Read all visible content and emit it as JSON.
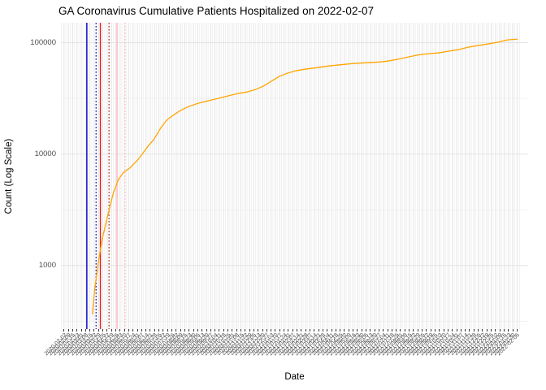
{
  "title": "GA Coronavirus Cumulative Patients Hospitalized on 2022-02-07",
  "axes": {
    "y_title": "Count (Log Scale)",
    "x_title": "Date",
    "y_tick_labels": [
      "100000",
      "10000",
      "1000"
    ]
  },
  "colors": {
    "series": "#FFA500",
    "grid_major": "#E4E4E4",
    "grid_minor": "#F1F1F1",
    "tick_mark": "#333333",
    "tick_text": "#4D4D4D",
    "background": "#FFFFFF"
  },
  "chart_data": {
    "type": "line",
    "title": "GA Coronavirus Cumulative Patients Hospitalized on 2022-02-07",
    "xlabel": "Date",
    "ylabel": "Count (Log Scale)",
    "y_scale": "log10",
    "ylim": [
      269,
      151000
    ],
    "x_range": [
      "2020-01-28",
      "2022-02-24"
    ],
    "y_major_ticks": [
      1000,
      10000,
      100000
    ],
    "y_minor_ticks": [
      316.23,
      3162.3,
      31623
    ],
    "grid": "major+minor",
    "legend": "none",
    "x_tick_labels": [
      "2020-02-02",
      "2020-02-09",
      "2020-02-16",
      "2020-02-23",
      "2020-03-01",
      "2020-03-08",
      "2020-03-15",
      "2020-03-22",
      "2020-03-29",
      "2020-04-05",
      "2020-04-12",
      "2020-04-19",
      "2020-04-26",
      "2020-05-03",
      "2020-05-10",
      "2020-05-17",
      "2020-05-24",
      "2020-05-31",
      "2020-06-07",
      "2020-06-14",
      "2020-06-21",
      "2020-06-28",
      "2020-07-05",
      "2020-07-12",
      "2020-07-19",
      "2020-07-26",
      "2020-08-02",
      "2020-08-09",
      "2020-08-16",
      "2020-08-23",
      "2020-08-30",
      "2020-09-06",
      "2020-09-13",
      "2020-09-20",
      "2020-09-27",
      "2020-10-04",
      "2020-10-11",
      "2020-10-18",
      "2020-10-25",
      "2020-11-01",
      "2020-11-08",
      "2020-11-15",
      "2020-11-22",
      "2020-11-29",
      "2020-12-06",
      "2020-12-13",
      "2020-12-20",
      "2020-12-27",
      "2021-01-03",
      "2021-01-10",
      "2021-01-17",
      "2021-01-24",
      "2021-01-31",
      "2021-02-07",
      "2021-02-14",
      "2021-02-21",
      "2021-02-28",
      "2021-03-07",
      "2021-03-14",
      "2021-03-21",
      "2021-03-28",
      "2021-04-04",
      "2021-04-11",
      "2021-04-18",
      "2021-04-25",
      "2021-05-02",
      "2021-05-09",
      "2021-05-16",
      "2021-05-23",
      "2021-05-30",
      "2021-06-06",
      "2021-06-13",
      "2021-06-20",
      "2021-06-27",
      "2021-07-04",
      "2021-07-11",
      "2021-07-18",
      "2021-07-25",
      "2021-08-01",
      "2021-08-08",
      "2021-08-15",
      "2021-08-22",
      "2021-08-29",
      "2021-09-05",
      "2021-09-12",
      "2021-09-19",
      "2021-09-26",
      "2021-10-03",
      "2021-10-10",
      "2021-10-17",
      "2021-10-24",
      "2021-10-31",
      "2021-11-07",
      "2021-11-14",
      "2021-11-21",
      "2021-11-28",
      "2021-12-05",
      "2021-12-12",
      "2021-12-19",
      "2021-12-26",
      "2022-01-02",
      "2022-01-09",
      "2022-01-16",
      "2022-01-23",
      "2022-01-30",
      "2022-02-06"
    ],
    "series": [
      {
        "name": "cumulative-patients-hospitalized",
        "color": "#FFA500",
        "x": [
          "2020-03-19",
          "2020-03-23",
          "2020-03-27",
          "2020-03-31",
          "2020-04-05",
          "2020-04-11",
          "2020-04-16",
          "2020-04-22",
          "2020-04-30",
          "2020-05-08",
          "2020-05-19",
          "2020-06-01",
          "2020-06-09",
          "2020-06-18",
          "2020-06-27",
          "2020-07-08",
          "2020-07-18",
          "2020-07-29",
          "2020-08-08",
          "2020-08-21",
          "2020-09-06",
          "2020-09-22",
          "2020-10-08",
          "2020-10-24",
          "2020-11-09",
          "2020-11-25",
          "2020-12-08",
          "2020-12-21",
          "2021-01-03",
          "2021-01-16",
          "2021-01-29",
          "2021-02-11",
          "2021-02-27",
          "2021-03-18",
          "2021-04-06",
          "2021-04-26",
          "2021-05-16",
          "2021-06-07",
          "2021-06-28",
          "2021-07-11",
          "2021-07-25",
          "2021-08-07",
          "2021-08-20",
          "2021-09-02",
          "2021-09-15",
          "2021-10-01",
          "2021-10-17",
          "2021-11-02",
          "2021-11-18",
          "2021-12-04",
          "2021-12-20",
          "2022-01-05",
          "2022-01-21",
          "2022-02-07"
        ],
        "y": [
          364,
          624,
          918,
          1290,
          1830,
          2520,
          3300,
          4480,
          5860,
          6810,
          7530,
          8910,
          10200,
          11900,
          13600,
          17200,
          20300,
          22500,
          24500,
          26600,
          28500,
          30000,
          31600,
          33200,
          34900,
          36100,
          37900,
          40600,
          44900,
          49700,
          53100,
          55900,
          57800,
          59700,
          61800,
          63400,
          65000,
          66100,
          67100,
          68400,
          70600,
          73100,
          75700,
          78200,
          79600,
          80900,
          83700,
          86500,
          91000,
          94200,
          97300,
          100700,
          105900,
          107600
        ]
      }
    ],
    "vlines": [
      {
        "name": "event-line-1",
        "date": "2020-03-10",
        "color": "#0000CD",
        "style": "solid"
      },
      {
        "name": "event-line-2",
        "date": "2020-03-25",
        "color": "#0000CD",
        "style": "dotted"
      },
      {
        "name": "event-line-3",
        "date": "2020-04-01",
        "color": "#E02020",
        "style": "solid"
      },
      {
        "name": "event-line-4",
        "date": "2020-04-15",
        "color": "#B22222",
        "style": "dotted"
      },
      {
        "name": "event-line-5",
        "date": "2020-04-28",
        "color": "#FFB6C1",
        "style": "solid"
      },
      {
        "name": "event-line-6",
        "date": "2020-05-11",
        "color": "#FFB6C1",
        "style": "dotted"
      }
    ]
  }
}
